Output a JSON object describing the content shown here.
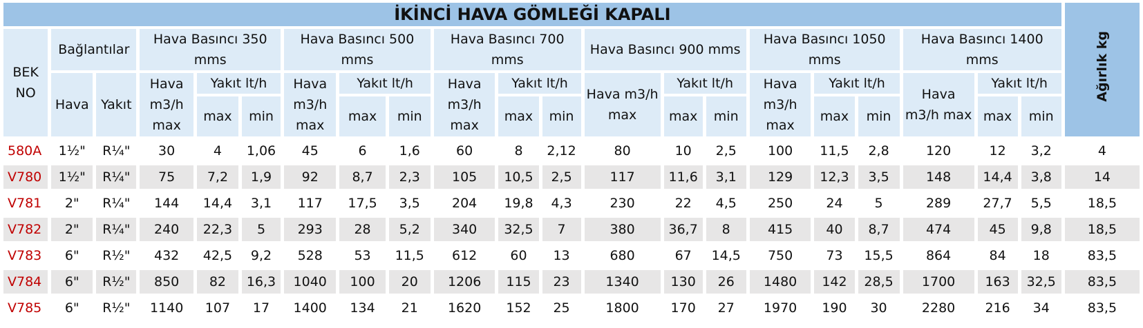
{
  "table": {
    "title": "İKİNCİ HAVA GÖMLEĞİ KAPALI",
    "bek_no": "BEK NO",
    "baglantilar": "Bağlantılar",
    "weight_header": "Ağırlık kg",
    "conn_hava": "Hava",
    "conn_yakit": "Yakıt",
    "air_header": "Hava m3/h max",
    "fuel_header": "Yakıt lt/h",
    "max": "max",
    "min": "min",
    "groups": [
      "Hava Basıncı 350 mms",
      "Hava Basıncı 500 mms",
      "Hava Basıncı 700 mms",
      "Hava Basıncı 900 mms",
      "Hava Basıncı 1050 mms",
      "Hava Basıncı 1400 mms"
    ],
    "rows": [
      [
        "580A",
        "1½\"",
        "R¼\"",
        "30",
        "4",
        "1,06",
        "45",
        "6",
        "1,6",
        "60",
        "8",
        "2,12",
        "80",
        "10",
        "2,5",
        "100",
        "11,5",
        "2,8",
        "120",
        "12",
        "3,2",
        "4"
      ],
      [
        "V780",
        "1½\"",
        "R¼\"",
        "75",
        "7,2",
        "1,9",
        "92",
        "8,7",
        "2,3",
        "105",
        "10,5",
        "2,5",
        "117",
        "11,6",
        "3,1",
        "129",
        "12,3",
        "3,5",
        "148",
        "14,4",
        "3,8",
        "14"
      ],
      [
        "V781",
        "2\"",
        "R¼\"",
        "144",
        "14,4",
        "3,1",
        "117",
        "17,5",
        "3,5",
        "204",
        "19,8",
        "4,3",
        "230",
        "22",
        "4,5",
        "250",
        "24",
        "5",
        "289",
        "27,7",
        "5,5",
        "18,5"
      ],
      [
        "V782",
        "2\"",
        "R¼\"",
        "240",
        "22,3",
        "5",
        "293",
        "28",
        "5,2",
        "340",
        "32,5",
        "7",
        "380",
        "36,7",
        "8",
        "415",
        "40",
        "8,7",
        "474",
        "45",
        "9,8",
        "18,5"
      ],
      [
        "V783",
        "6\"",
        "R½\"",
        "432",
        "42,5",
        "9,2",
        "528",
        "53",
        "11,5",
        "612",
        "60",
        "13",
        "680",
        "67",
        "14,5",
        "750",
        "73",
        "15,5",
        "864",
        "84",
        "18",
        "83,5"
      ],
      [
        "V784",
        "6\"",
        "R½\"",
        "850",
        "82",
        "16,3",
        "1040",
        "100",
        "20",
        "1206",
        "115",
        "23",
        "1340",
        "130",
        "26",
        "1480",
        "142",
        "28,5",
        "1700",
        "163",
        "32,5",
        "83,5"
      ],
      [
        "V785",
        "6\"",
        "R½\"",
        "1140",
        "107",
        "17",
        "1400",
        "134",
        "21",
        "1620",
        "152",
        "25",
        "1800",
        "170",
        "27",
        "1970",
        "190",
        "30",
        "2280",
        "216",
        "34",
        "83,5"
      ]
    ]
  }
}
